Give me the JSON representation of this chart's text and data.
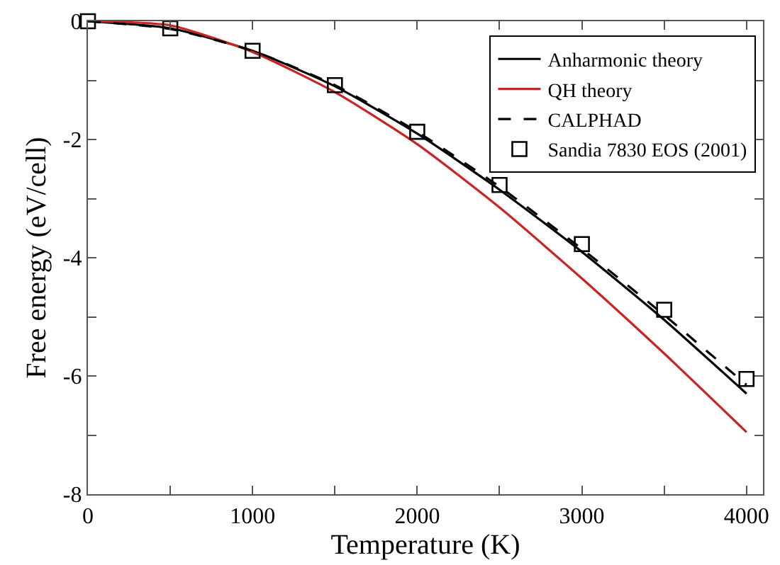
{
  "chart_data": {
    "type": "line",
    "xlabel": "Temperature (K)",
    "ylabel": "Free energy (eV/cell)",
    "x": [
      0,
      500,
      1000,
      1500,
      2000,
      2500,
      3000,
      3500,
      4000
    ],
    "series": [
      {
        "name": "Anharmonic theory",
        "color": "#000000",
        "line_style": "solid",
        "values": [
          0,
          -0.12,
          -0.5,
          -1.1,
          -1.9,
          -2.85,
          -3.9,
          -5.05,
          -6.3
        ]
      },
      {
        "name": "QH theory",
        "color": "#cc2222",
        "line_style": "solid",
        "values": [
          0,
          -0.07,
          -0.52,
          -1.2,
          -2.08,
          -3.15,
          -4.35,
          -5.62,
          -6.95
        ]
      },
      {
        "name": "CALPHAD",
        "color": "#000000",
        "line_style": "dashed",
        "values": [
          0,
          -0.13,
          -0.5,
          -1.08,
          -1.87,
          -2.8,
          -3.85,
          -4.97,
          -6.15
        ]
      },
      {
        "name": "Sandia 7830 EOS (2001)",
        "type": "scatter",
        "marker": "square",
        "color": "#000000",
        "values": [
          0,
          -0.12,
          -0.5,
          -1.08,
          -1.87,
          -2.77,
          -3.77,
          -4.88,
          -6.05
        ]
      }
    ],
    "xlim": [
      0,
      4100
    ],
    "ylim": [
      -8,
      0
    ],
    "xticks": [
      0,
      {
        "value": 500,
        "label": null
      },
      1000,
      {
        "value": 1500,
        "label": null
      },
      2000,
      {
        "value": 2500,
        "label": null
      },
      3000,
      {
        "value": 3500,
        "label": null
      },
      4000
    ],
    "yticks": [
      -8,
      {
        "value": -7,
        "label": null
      },
      -6,
      {
        "value": -5,
        "label": null
      },
      -4,
      {
        "value": -3,
        "label": null
      },
      -2,
      {
        "value": -1,
        "label": null
      },
      0
    ],
    "grid": false,
    "legend": "top right",
    "marker": "none"
  }
}
